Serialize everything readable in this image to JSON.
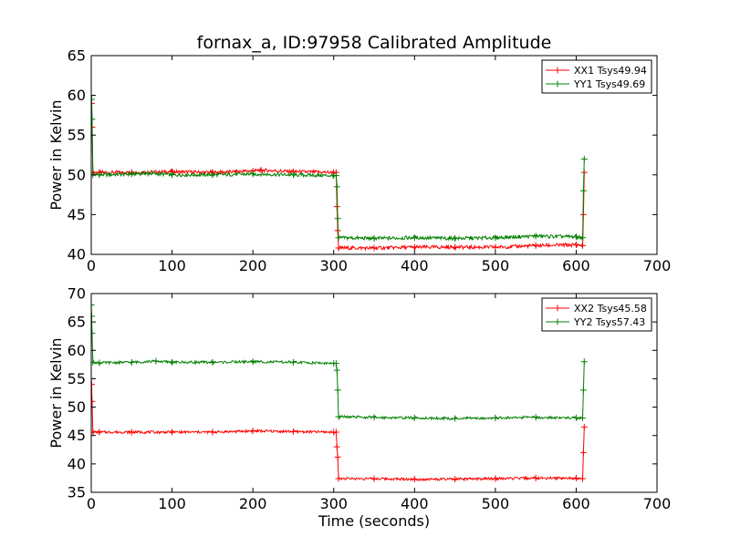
{
  "chart_data": [
    {
      "type": "line",
      "title": "fornax_a, ID:97958 Calibrated Amplitude",
      "xlabel": "",
      "ylabel": "Power in Kelvin",
      "xlim": [
        0,
        700
      ],
      "ylim": [
        40,
        65
      ],
      "xticks": [
        "0",
        "100",
        "200",
        "300",
        "400",
        "500",
        "600",
        "700"
      ],
      "yticks": [
        "40",
        "45",
        "50",
        "55",
        "60",
        "65"
      ],
      "legend_position": "top-right",
      "series": [
        {
          "name": "XX1 Tsys49.94",
          "color": "#ff0000",
          "values": [
            [
              0,
              59.5
            ],
            [
              0.5,
              59
            ],
            [
              1,
              56
            ],
            [
              2,
              50.3
            ],
            [
              10,
              50.3
            ],
            [
              50,
              50.3
            ],
            [
              100,
              50.4
            ],
            [
              150,
              50.3
            ],
            [
              200,
              50.5
            ],
            [
              210,
              50.6
            ],
            [
              250,
              50.4
            ],
            [
              300,
              50.3
            ],
            [
              303,
              50.3
            ],
            [
              304,
              46
            ],
            [
              305,
              43
            ],
            [
              306,
              40.8
            ],
            [
              350,
              40.8
            ],
            [
              400,
              40.9
            ],
            [
              450,
              40.9
            ],
            [
              500,
              40.9
            ],
            [
              550,
              41.1
            ],
            [
              600,
              41.2
            ],
            [
              608,
              41.1
            ],
            [
              609,
              45
            ],
            [
              610,
              50.3
            ]
          ]
        },
        {
          "name": "YY1 Tsys49.69",
          "color": "#008000",
          "values": [
            [
              0,
              60
            ],
            [
              0.5,
              59.5
            ],
            [
              1,
              57
            ],
            [
              2,
              50
            ],
            [
              10,
              50
            ],
            [
              50,
              50.1
            ],
            [
              70,
              50.2
            ],
            [
              100,
              50
            ],
            [
              150,
              50
            ],
            [
              200,
              50.1
            ],
            [
              250,
              50
            ],
            [
              300,
              49.9
            ],
            [
              303,
              49.9
            ],
            [
              304,
              48.5
            ],
            [
              305,
              44.5
            ],
            [
              306,
              42.1
            ],
            [
              350,
              42
            ],
            [
              400,
              42.1
            ],
            [
              450,
              42
            ],
            [
              500,
              42.1
            ],
            [
              550,
              42.3
            ],
            [
              600,
              42.2
            ],
            [
              608,
              42.1
            ],
            [
              609,
              48
            ],
            [
              610,
              52
            ]
          ]
        }
      ]
    },
    {
      "type": "line",
      "title": "",
      "xlabel": "Time (seconds)",
      "ylabel": "Power in Kelvin",
      "xlim": [
        0,
        700
      ],
      "ylim": [
        35,
        70
      ],
      "xticks": [
        "0",
        "100",
        "200",
        "300",
        "400",
        "500",
        "600",
        "700"
      ],
      "yticks": [
        "35",
        "40",
        "45",
        "50",
        "55",
        "60",
        "65",
        "70"
      ],
      "legend_position": "top-right",
      "series": [
        {
          "name": "XX2 Tsys45.58",
          "color": "#ff0000",
          "values": [
            [
              0,
              55
            ],
            [
              0.5,
              54
            ],
            [
              1,
              51
            ],
            [
              2,
              45.6
            ],
            [
              10,
              45.6
            ],
            [
              50,
              45.6
            ],
            [
              100,
              45.6
            ],
            [
              150,
              45.6
            ],
            [
              200,
              45.8
            ],
            [
              250,
              45.7
            ],
            [
              300,
              45.6
            ],
            [
              303,
              45.6
            ],
            [
              304,
              43
            ],
            [
              305,
              41.2
            ],
            [
              306,
              37.4
            ],
            [
              350,
              37.4
            ],
            [
              400,
              37.3
            ],
            [
              450,
              37.3
            ],
            [
              500,
              37.4
            ],
            [
              550,
              37.5
            ],
            [
              600,
              37.5
            ],
            [
              608,
              37.4
            ],
            [
              609,
              42
            ],
            [
              610,
              46.5
            ]
          ]
        },
        {
          "name": "YY2 Tsys57.43",
          "color": "#008000",
          "values": [
            [
              0,
              68
            ],
            [
              0.5,
              66
            ],
            [
              1,
              63
            ],
            [
              2,
              57.9
            ],
            [
              10,
              57.8
            ],
            [
              50,
              57.9
            ],
            [
              80,
              58.1
            ],
            [
              100,
              57.9
            ],
            [
              150,
              57.9
            ],
            [
              200,
              58
            ],
            [
              250,
              57.9
            ],
            [
              300,
              57.7
            ],
            [
              303,
              57.7
            ],
            [
              304,
              56.5
            ],
            [
              305,
              53
            ],
            [
              306,
              48.3
            ],
            [
              350,
              48.2
            ],
            [
              400,
              48.1
            ],
            [
              450,
              48
            ],
            [
              500,
              48.1
            ],
            [
              550,
              48.2
            ],
            [
              600,
              48.1
            ],
            [
              608,
              48.1
            ],
            [
              609,
              53
            ],
            [
              610,
              58
            ]
          ]
        }
      ]
    }
  ]
}
